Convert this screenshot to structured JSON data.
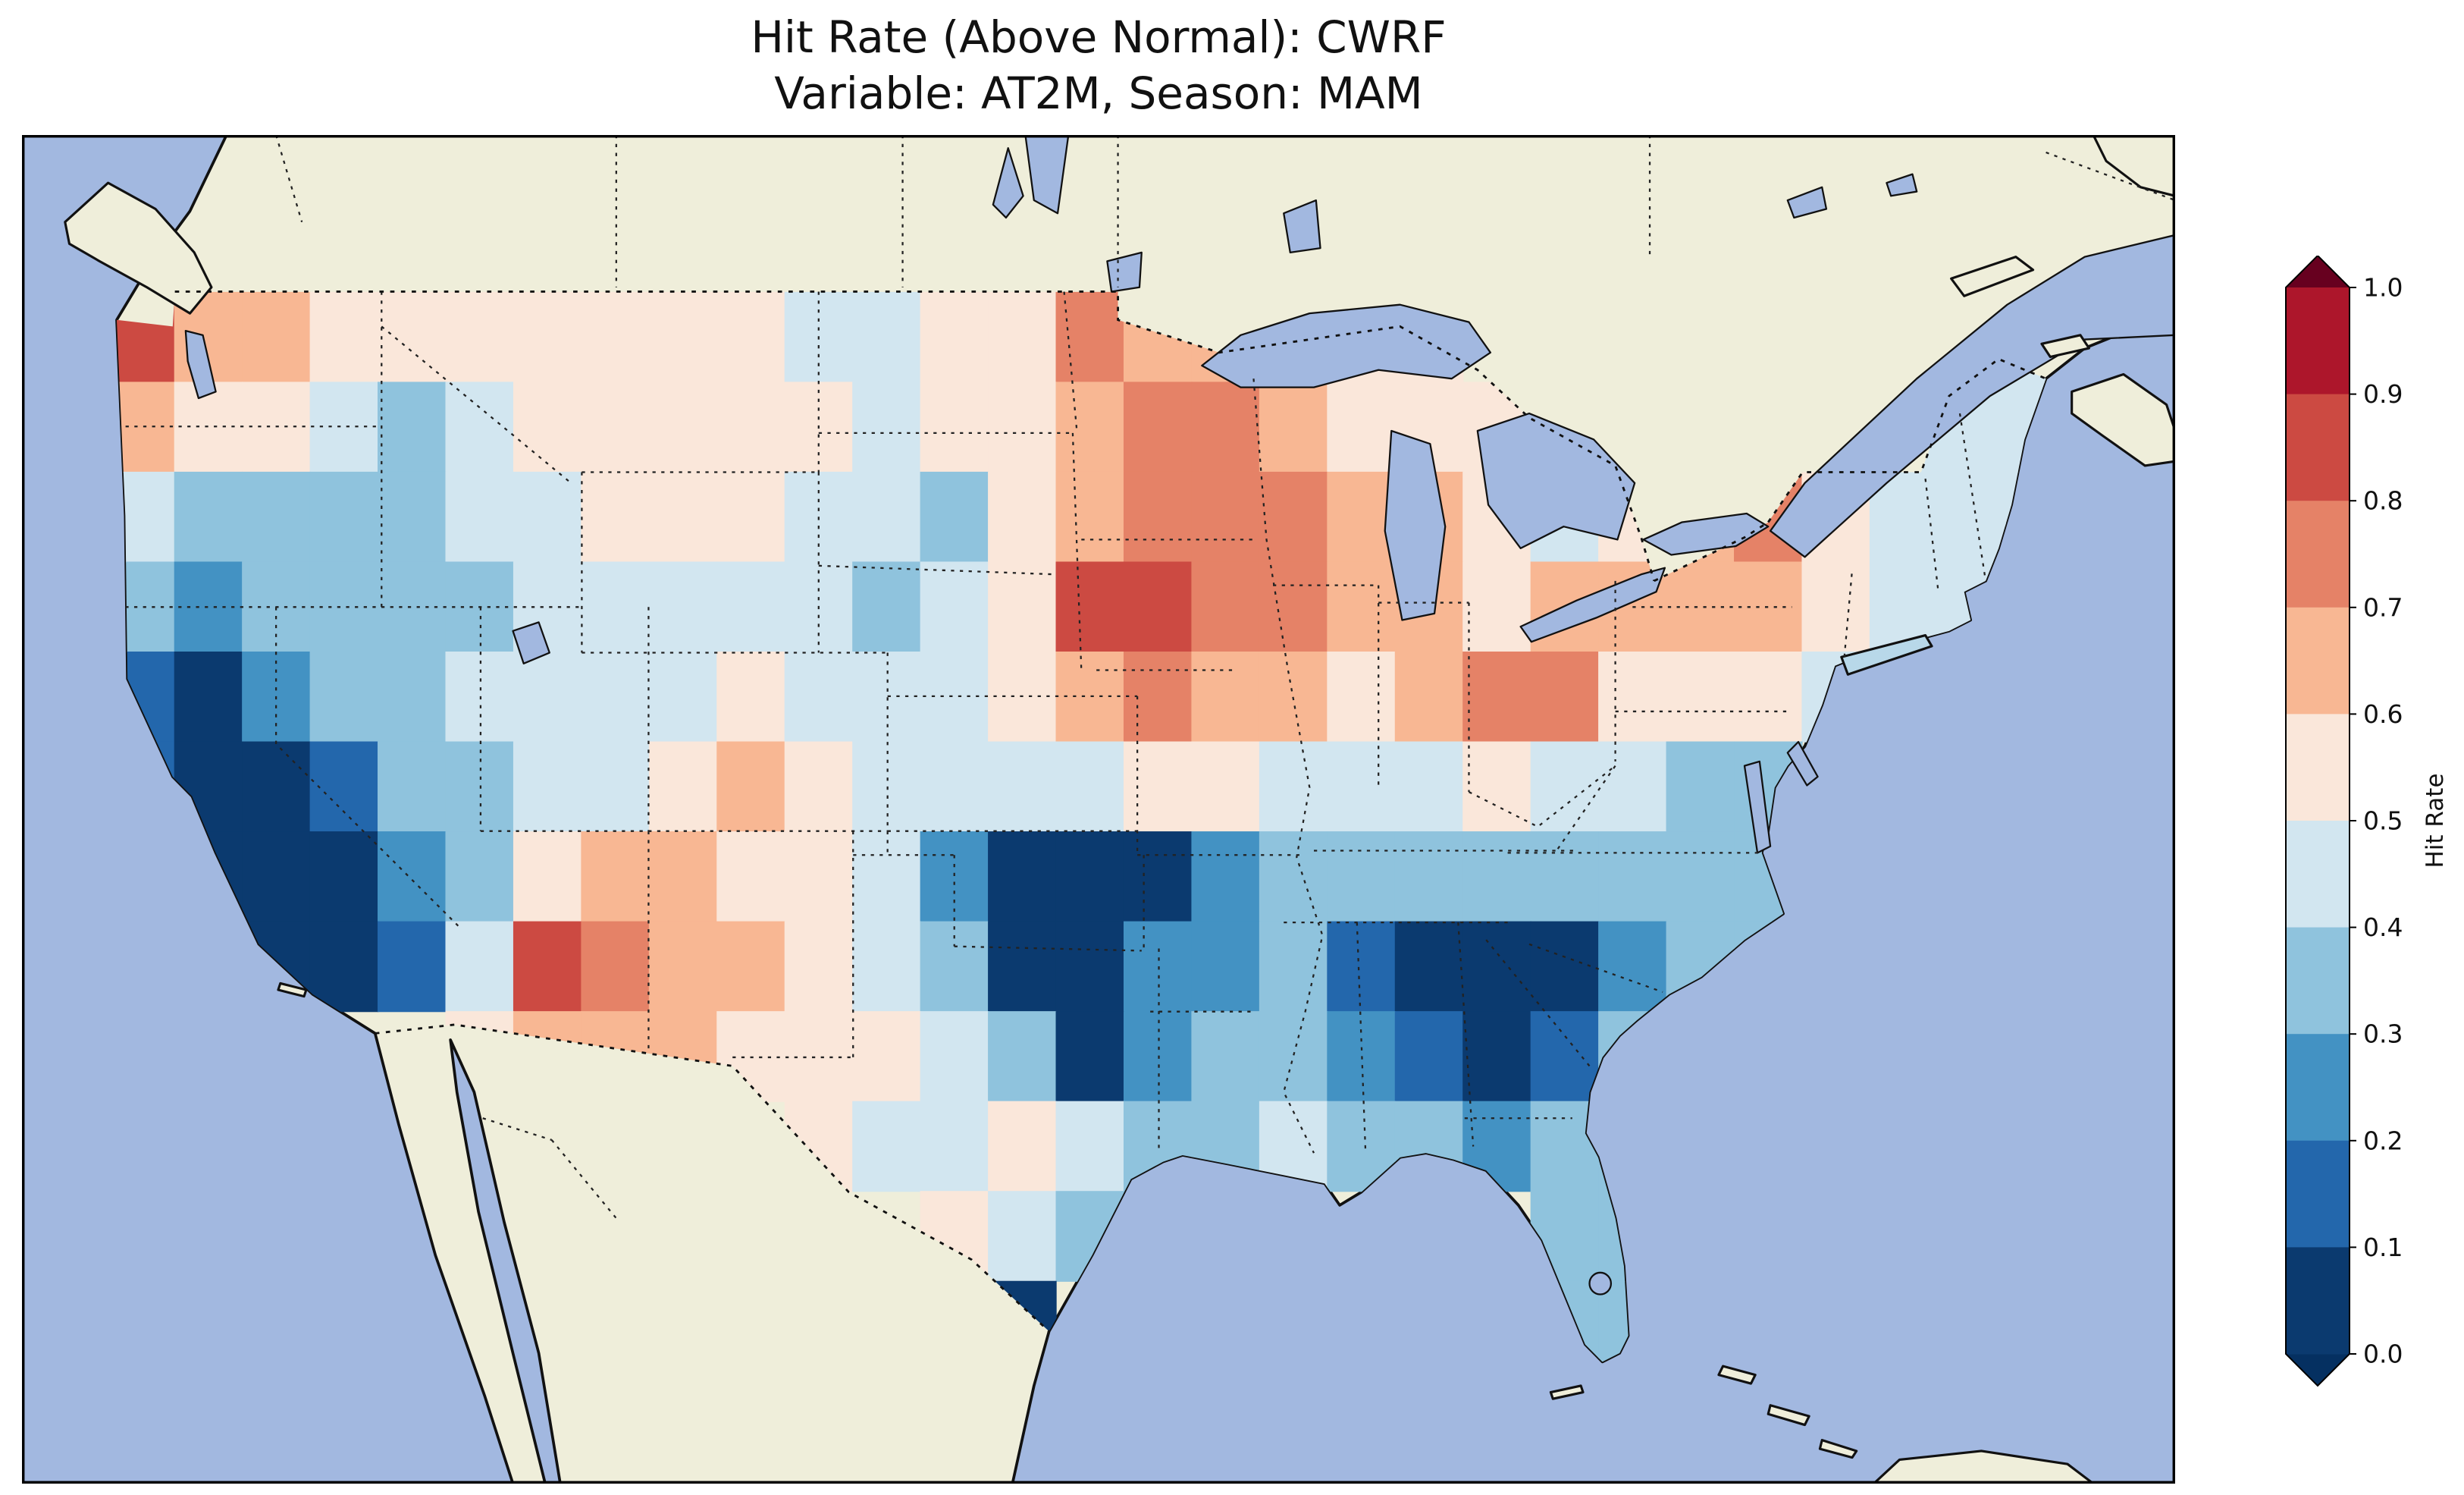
{
  "figure": {
    "title_line1": "Hit Rate (Above Normal): CWRF",
    "title_line2": "Variable: AT2M, Season: MAM"
  },
  "map": {
    "ocean_color": "#a2b8e0",
    "land_color": "#efeeda",
    "border_color": "#111111"
  },
  "colorbar": {
    "label": "Hit Rate",
    "tick_labels": [
      "1.0",
      "0.9",
      "0.8",
      "0.7",
      "0.6",
      "0.5",
      "0.4",
      "0.3",
      "0.2",
      "0.1",
      "0.0"
    ],
    "levels": [
      0.0,
      0.1,
      0.2,
      0.3,
      0.4,
      0.5,
      0.6,
      0.7,
      0.8,
      0.9,
      1.0
    ],
    "colors": {
      "under": "#053061",
      "bins": [
        "#0b3a6f",
        "#2367ac",
        "#4392c3",
        "#8fc3dd",
        "#d2e6f0",
        "#fae7da",
        "#f8b793",
        "#e58267",
        "#cc4a42",
        "#ad162b"
      ],
      "over": "#67001f"
    }
  },
  "chart_data": {
    "type": "heatmap",
    "title": "Hit Rate (Above Normal): CWRF",
    "subtitle": "Variable: AT2M, Season: MAM",
    "metric": "Hit Rate (Above Normal)",
    "model": "CWRF",
    "variable": "AT2M",
    "season": "MAM",
    "colormap": "RdBu_r (discrete, 0.1 steps)",
    "value_range": [
      0.0,
      1.0
    ],
    "legend_label": "Hit Rate",
    "lon_centers": [
      -124,
      -122,
      -120,
      -118,
      -116,
      -114,
      -112,
      -110,
      -108,
      -106,
      -104,
      -102,
      -100,
      -98,
      -96,
      -94,
      -92,
      -90,
      -88,
      -86,
      -84,
      -82,
      -80,
      -78,
      -76,
      -74,
      -72,
      -70,
      -68
    ],
    "lat_centers": [
      48,
      46,
      44,
      42,
      40,
      38,
      36,
      34,
      32,
      30,
      28,
      26
    ],
    "values": [
      [
        0.82,
        0.65,
        0.6,
        0.58,
        0.55,
        0.55,
        0.55,
        0.55,
        0.52,
        0.52,
        0.48,
        0.45,
        0.52,
        0.58,
        0.72,
        0.68,
        0.65,
        0.6,
        0.55,
        0.5,
        null,
        null,
        null,
        null,
        null,
        null,
        0.42,
        0.42,
        0.42
      ],
      [
        0.6,
        0.55,
        0.5,
        0.45,
        0.35,
        0.4,
        0.5,
        0.55,
        0.55,
        0.5,
        0.5,
        0.45,
        0.5,
        0.55,
        0.65,
        0.7,
        0.7,
        0.6,
        0.55,
        0.55,
        0.5,
        null,
        null,
        null,
        null,
        0.45,
        0.42,
        0.4,
        0.42
      ],
      [
        0.45,
        0.35,
        0.3,
        0.3,
        0.35,
        0.4,
        0.45,
        0.5,
        0.5,
        0.5,
        0.45,
        0.4,
        0.35,
        0.5,
        0.6,
        0.75,
        0.75,
        0.7,
        0.65,
        0.6,
        0.5,
        0.45,
        0.55,
        0.62,
        0.7,
        0.55,
        0.45,
        0.4,
        0.45
      ],
      [
        0.3,
        0.25,
        0.3,
        0.35,
        0.3,
        0.35,
        0.4,
        0.45,
        0.45,
        0.45,
        0.4,
        0.35,
        0.4,
        0.55,
        0.85,
        0.8,
        0.75,
        0.7,
        0.65,
        0.6,
        0.55,
        0.6,
        0.6,
        0.65,
        0.6,
        0.5,
        0.45,
        0.4,
        null
      ],
      [
        0.15,
        0.08,
        0.2,
        0.3,
        0.35,
        0.4,
        0.4,
        0.45,
        0.45,
        0.5,
        0.45,
        0.4,
        0.45,
        0.5,
        0.65,
        0.7,
        0.65,
        0.6,
        0.55,
        0.6,
        0.78,
        0.72,
        0.55,
        0.5,
        0.5,
        0.45,
        null,
        null,
        null
      ],
      [
        0.1,
        0.04,
        0.04,
        0.15,
        0.3,
        0.35,
        0.4,
        0.45,
        0.5,
        0.6,
        0.55,
        0.45,
        0.4,
        0.45,
        0.4,
        0.5,
        0.5,
        0.45,
        0.4,
        0.45,
        0.5,
        0.45,
        0.4,
        0.35,
        0.3,
        null,
        null,
        null,
        null
      ],
      [
        null,
        0.04,
        0.04,
        0.08,
        0.25,
        0.35,
        0.55,
        0.6,
        0.6,
        0.5,
        0.5,
        0.4,
        0.25,
        0.05,
        0.05,
        0.08,
        0.25,
        0.3,
        0.35,
        0.3,
        0.35,
        0.3,
        0.3,
        0.3,
        0.3,
        null,
        null,
        null,
        null
      ],
      [
        null,
        null,
        0.05,
        0.05,
        0.15,
        0.4,
        0.85,
        0.7,
        0.65,
        0.6,
        0.55,
        0.45,
        0.3,
        0.05,
        0.08,
        0.2,
        0.25,
        0.35,
        0.12,
        0.05,
        0.05,
        0.08,
        0.25,
        0.35,
        0.35,
        null,
        null,
        null,
        null
      ],
      [
        null,
        null,
        null,
        null,
        null,
        0.55,
        0.65,
        0.6,
        0.6,
        0.55,
        0.55,
        0.5,
        0.4,
        0.3,
        0.05,
        0.2,
        0.3,
        0.35,
        0.2,
        0.12,
        0.08,
        0.15,
        0.3,
        null,
        null,
        null,
        null,
        null,
        null
      ],
      [
        null,
        null,
        null,
        null,
        null,
        null,
        null,
        null,
        null,
        null,
        0.5,
        0.45,
        0.45,
        0.55,
        0.4,
        0.3,
        0.35,
        0.4,
        0.35,
        0.3,
        0.25,
        0.3,
        0.3,
        null,
        null,
        null,
        null,
        null,
        null
      ],
      [
        null,
        null,
        null,
        null,
        null,
        null,
        null,
        null,
        null,
        null,
        null,
        null,
        0.5,
        0.45,
        0.35,
        null,
        null,
        null,
        null,
        null,
        null,
        0.3,
        0.35,
        null,
        null,
        null,
        null,
        null,
        null
      ],
      [
        null,
        null,
        null,
        null,
        null,
        null,
        null,
        null,
        null,
        null,
        null,
        null,
        null,
        0.05,
        null,
        null,
        null,
        null,
        null,
        null,
        null,
        0.3,
        0.3,
        null,
        null,
        null,
        null,
        null,
        null
      ]
    ]
  }
}
